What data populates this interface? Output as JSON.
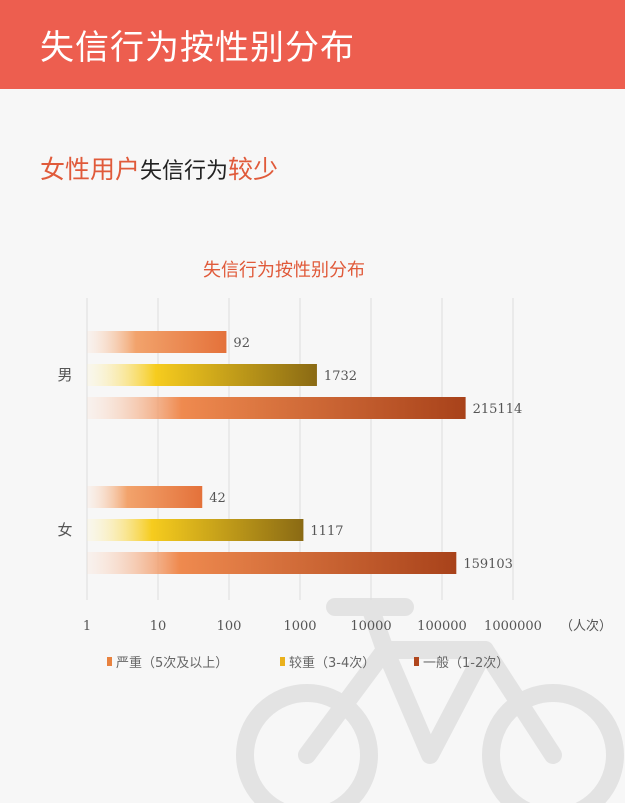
{
  "header": {
    "title": "失信行为按性别分布"
  },
  "headline": {
    "part1": "女性用户",
    "part2": "失信行为",
    "part3": "较少"
  },
  "colors": {
    "header_bg": "#ed5e4f",
    "accent": "#e05a3a",
    "severe": "#e8823f",
    "heavier": "#a07a1a",
    "general": "#b0461d"
  },
  "chart_data": {
    "type": "bar",
    "orientation": "horizontal",
    "title": "失信行为按性别分布",
    "x_scale": "log",
    "x_ticks": [
      "1",
      "10",
      "100",
      "1000",
      "10000",
      "100000",
      "1000000"
    ],
    "x_tick_values": [
      1,
      10,
      100,
      1000,
      10000,
      100000,
      1000000
    ],
    "xlim": [
      1,
      1000000
    ],
    "xunit": "（人次）",
    "categories": [
      "男",
      "女"
    ],
    "series": [
      {
        "name": "严重（5次及以上）",
        "values": [
          92,
          42
        ]
      },
      {
        "name": "较重（3-4次）",
        "values": [
          1732,
          1117
        ]
      },
      {
        "name": "一般（1-2次）",
        "values": [
          215114,
          159103
        ]
      }
    ],
    "data_labels": [
      [
        "92",
        "1732",
        "215114"
      ],
      [
        "42",
        "1117",
        "159103"
      ]
    ],
    "grid": true,
    "legend_position": "bottom"
  }
}
